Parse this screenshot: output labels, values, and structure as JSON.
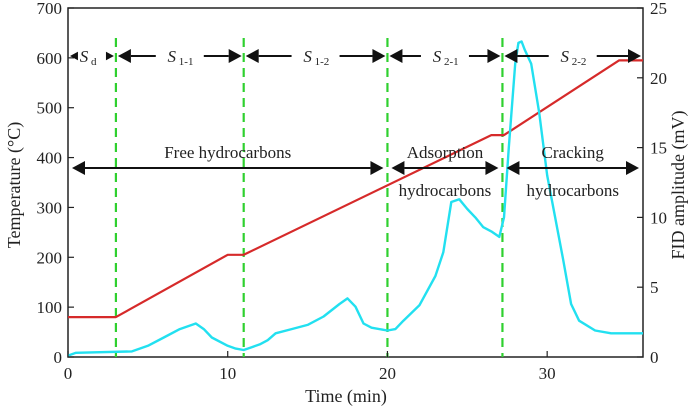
{
  "chart_data": {
    "type": "line",
    "xlabel": "Time (min)",
    "ylabel_left": "Temperature (°C)",
    "ylabel_right": "FID amplitude (mV)",
    "xlim": [
      0,
      36
    ],
    "ylim_left": [
      0,
      700
    ],
    "ylim_right": [
      0,
      25
    ],
    "x_ticks": [
      0,
      10,
      20,
      30
    ],
    "y_left_ticks": [
      0,
      100,
      200,
      300,
      400,
      500,
      600,
      700
    ],
    "y_right_ticks": [
      0,
      5,
      10,
      15,
      20,
      25
    ],
    "grid": false,
    "series": [
      {
        "axis": "left",
        "color": "#d62a2a",
        "x": [
          0,
          3,
          10,
          11,
          26.5,
          27.3,
          34.5,
          36
        ],
        "y": [
          80,
          80,
          205,
          205,
          445,
          445,
          595,
          595
        ]
      },
      {
        "axis": "right",
        "color": "#22e0f0",
        "x": [
          0,
          0.5,
          4,
          5,
          6,
          7,
          8,
          8.5,
          9,
          10,
          10.5,
          11,
          11.5,
          12,
          12.5,
          13,
          14,
          15,
          16,
          17,
          17.5,
          18,
          18.5,
          19,
          20,
          20.5,
          21,
          22,
          23,
          23.5,
          24,
          24.5,
          25,
          25.5,
          26,
          26.5,
          27,
          27.3,
          27.6,
          28,
          28.2,
          28.4,
          28.6,
          29,
          29.5,
          30,
          31,
          31.5,
          32,
          33,
          34,
          35,
          36
        ],
        "y": [
          0.1,
          0.3,
          0.4,
          0.8,
          1.4,
          2.0,
          2.4,
          2.0,
          1.4,
          0.8,
          0.6,
          0.5,
          0.7,
          0.9,
          1.2,
          1.7,
          2.0,
          2.3,
          2.9,
          3.8,
          4.2,
          3.6,
          2.4,
          2.1,
          1.9,
          2.0,
          2.6,
          3.7,
          5.8,
          7.5,
          11.1,
          11.3,
          10.6,
          10.0,
          9.3,
          9.0,
          8.6,
          10,
          15,
          21,
          22.5,
          22.6,
          22,
          21,
          17.5,
          13,
          7,
          3.8,
          2.6,
          1.9,
          1.7,
          1.7,
          1.7
        ]
      }
    ],
    "boundaries": [
      3,
      11,
      20,
      27.2
    ],
    "stage_arrows": [
      {
        "label": "S",
        "sub": "d",
        "x0": 0,
        "x1": 3
      },
      {
        "label": "S",
        "sub": "1-1",
        "x0": 3,
        "x1": 11
      },
      {
        "label": "S",
        "sub": "1-2",
        "x0": 11,
        "x1": 20
      },
      {
        "label": "S",
        "sub": "2-1",
        "x0": 20,
        "x1": 27.2
      },
      {
        "label": "S",
        "sub": "2-2",
        "x0": 27.2,
        "x1": 36
      }
    ],
    "annotations": [
      {
        "lines": [
          "Free hydrocarbons"
        ],
        "x0": 0,
        "x1": 20
      },
      {
        "lines": [
          "Adsorption",
          "hydrocarbons"
        ],
        "x0": 20,
        "x1": 27.2
      },
      {
        "lines": [
          "Cracking",
          "hydrocarbons"
        ],
        "x0": 27.2,
        "x1": 36
      }
    ]
  }
}
